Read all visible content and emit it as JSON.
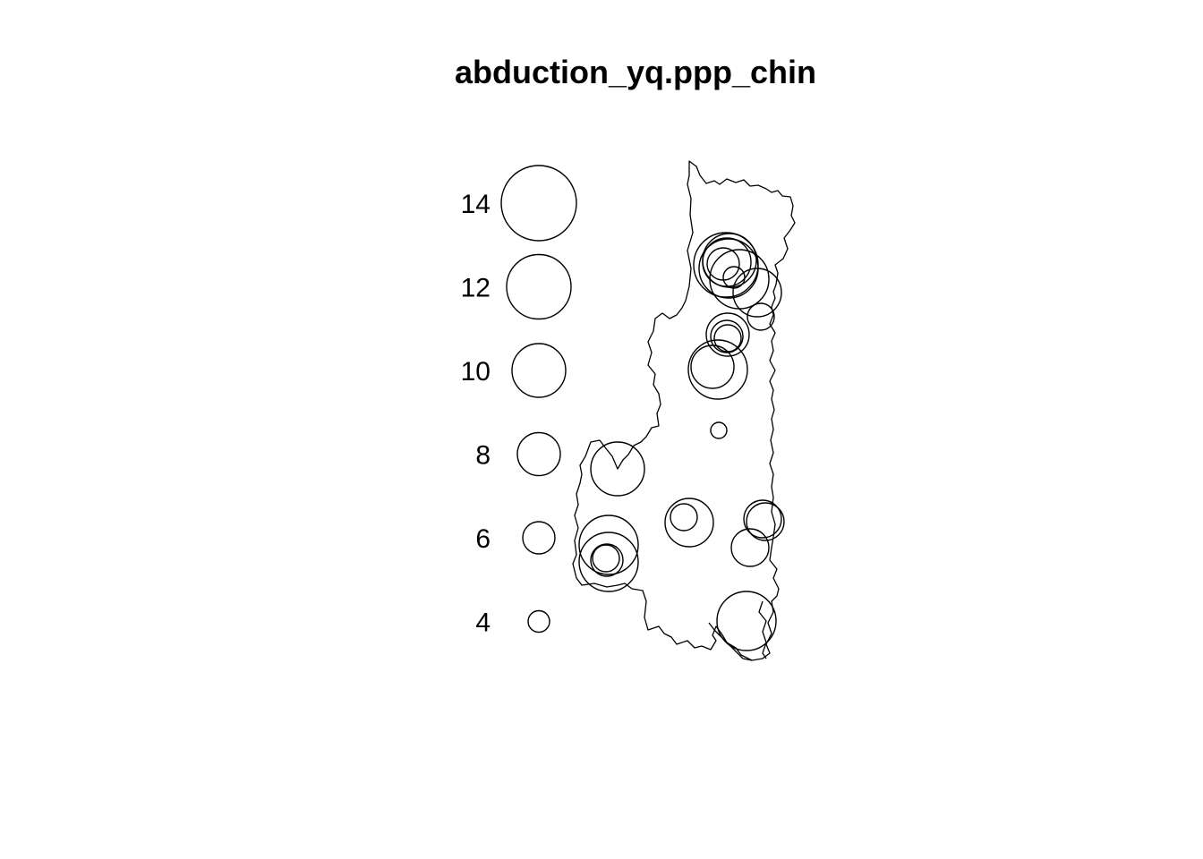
{
  "chart_data": {
    "type": "scatter",
    "subtype": "proportional-circle marked point pattern",
    "title": "abduction_yq.ppp_chin",
    "xlabel": "",
    "ylabel": "",
    "grid": false,
    "legend_placement": "left",
    "legend": {
      "marks": [
        14,
        12,
        10,
        8,
        6,
        4
      ],
      "labels": [
        "14",
        "12",
        "10",
        "8",
        "6",
        "4"
      ]
    },
    "points": [
      {
        "mark": 12,
        "x": 811,
        "y": 296
      },
      {
        "mark": 11,
        "x": 814,
        "y": 300
      },
      {
        "mark": 10,
        "x": 815,
        "y": 291
      },
      {
        "mark": 9,
        "x": 812,
        "y": 293
      },
      {
        "mark": 6,
        "x": 808,
        "y": 295
      },
      {
        "mark": 11,
        "x": 826,
        "y": 312
      },
      {
        "mark": 9,
        "x": 846,
        "y": 327
      },
      {
        "mark": 4,
        "x": 820,
        "y": 310
      },
      {
        "mark": 5,
        "x": 850,
        "y": 354
      },
      {
        "mark": 8,
        "x": 813,
        "y": 374
      },
      {
        "mark": 6,
        "x": 812,
        "y": 376
      },
      {
        "mark": 5,
        "x": 813,
        "y": 378
      },
      {
        "mark": 8,
        "x": 796,
        "y": 410
      },
      {
        "mark": 11,
        "x": 802,
        "y": 413
      },
      {
        "mark": 3,
        "x": 803,
        "y": 481
      },
      {
        "mark": 10,
        "x": 690,
        "y": 524
      },
      {
        "mark": 9,
        "x": 770,
        "y": 584
      },
      {
        "mark": 5,
        "x": 764,
        "y": 578
      },
      {
        "mark": 7,
        "x": 852,
        "y": 580
      },
      {
        "mark": 7,
        "x": 855,
        "y": 583
      },
      {
        "mark": 7,
        "x": 838,
        "y": 612
      },
      {
        "mark": 11,
        "x": 680,
        "y": 609
      },
      {
        "mark": 11,
        "x": 680,
        "y": 628
      },
      {
        "mark": 6,
        "x": 678,
        "y": 626
      },
      {
        "mark": 5,
        "x": 677,
        "y": 624
      },
      {
        "mark": 11,
        "x": 834,
        "y": 694
      }
    ]
  }
}
